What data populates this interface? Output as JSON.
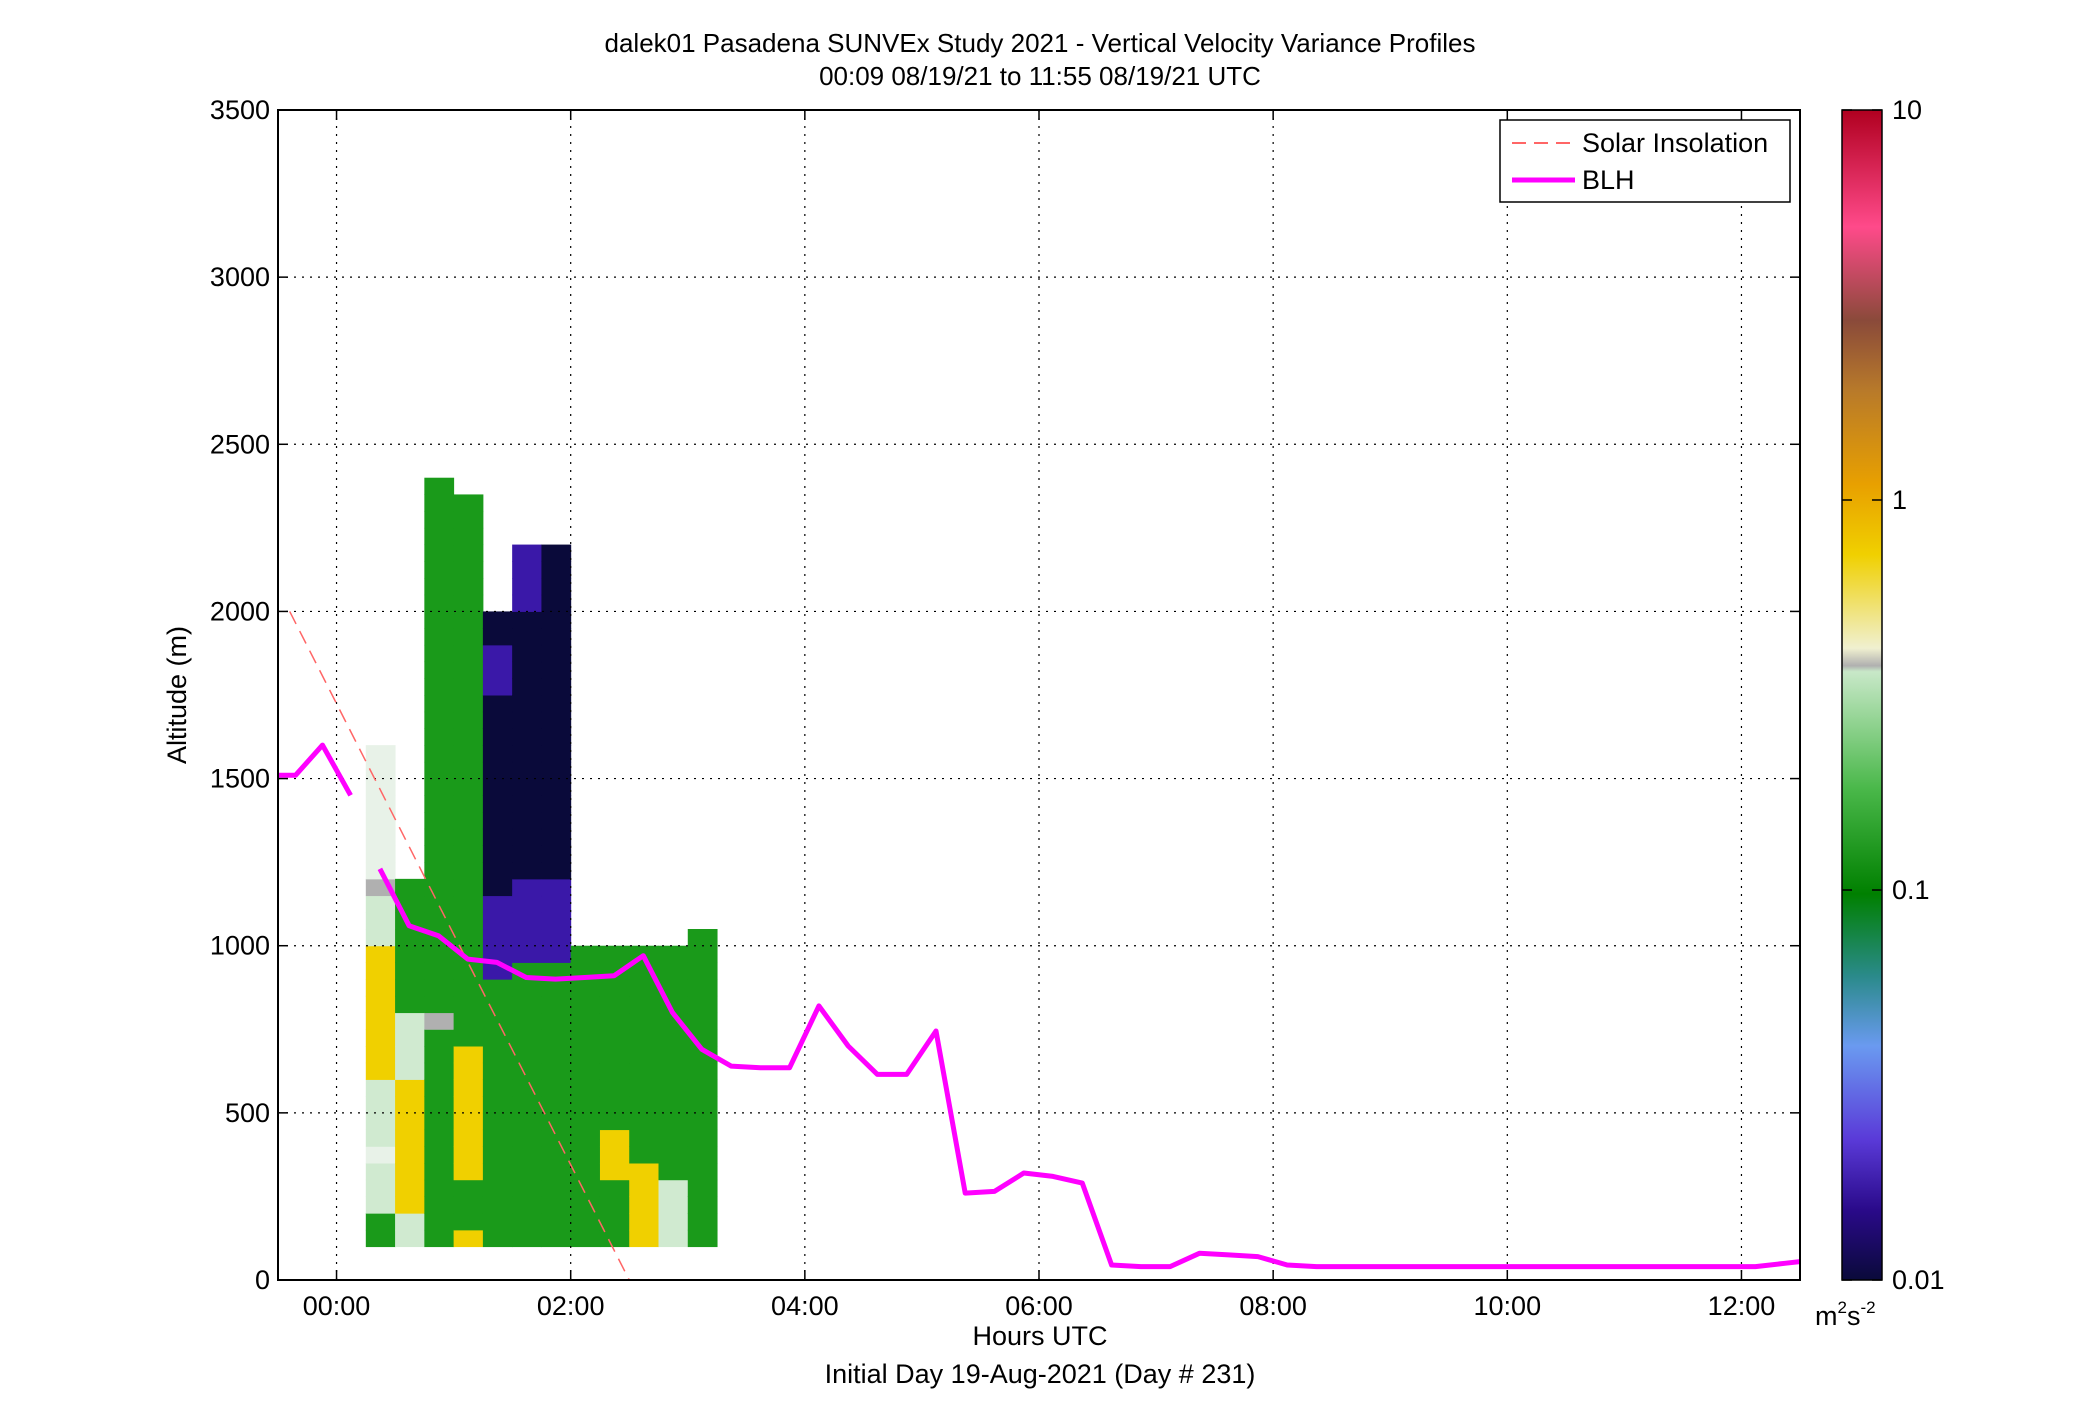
{
  "chart_data": {
    "type": "heatmap",
    "title": "dalek01 Pasadena SUNVEx Study 2021 - Vertical Velocity Variance Profiles",
    "subtitle": "00:09 08/19/21 to 11:55 08/19/21  UTC",
    "xlabel": "Hours UTC",
    "ylabel": "Altitude (m)",
    "footer": "Initial Day 19-Aug-2021 (Day # 231)",
    "xlim_hours": [
      -0.5,
      12.5
    ],
    "ylim": [
      0,
      3500
    ],
    "x_ticks": [
      {
        "hour": 0,
        "label": "00:00"
      },
      {
        "hour": 2,
        "label": "02:00"
      },
      {
        "hour": 4,
        "label": "04:00"
      },
      {
        "hour": 6,
        "label": "06:00"
      },
      {
        "hour": 8,
        "label": "08:00"
      },
      {
        "hour": 10,
        "label": "10:00"
      },
      {
        "hour": 12,
        "label": "12:00"
      }
    ],
    "y_ticks": [
      0,
      500,
      1000,
      1500,
      2000,
      2500,
      3000,
      3500
    ],
    "y_tick_labels": [
      "0",
      "500",
      "1000",
      "1500",
      "2000",
      "2500",
      "3000",
      "3500"
    ],
    "grid": true,
    "colorbar": {
      "scale": "log",
      "range": [
        0.01,
        10
      ],
      "tick_labels": [
        "0.01",
        "0.1",
        "1",
        "10"
      ],
      "unit_base": "m",
      "unit_sup1": "2",
      "unit_mid": "s",
      "unit_sup2": "-2"
    },
    "legend": {
      "position": "top-right",
      "entries": [
        {
          "label": "Solar Insolation",
          "color": "#ff6666",
          "style": "dashed"
        },
        {
          "label": "BLH",
          "color": "#ff00ff",
          "style": "solid"
        }
      ]
    },
    "solar_insolation": {
      "x_hours": [
        -0.4,
        2.5
      ],
      "y": [
        2000,
        0
      ]
    },
    "blh_segments": [
      {
        "x_hours": [
          -0.5,
          -0.35,
          -0.12,
          0.12
        ],
        "y": [
          1510,
          1510,
          1600,
          1450
        ]
      },
      {
        "x_hours": [
          0.37,
          0.62,
          0.87,
          1.12,
          1.37,
          1.62,
          1.87,
          2.12,
          2.37,
          2.62,
          2.87,
          3.12,
          3.37,
          3.62,
          3.87,
          4.12,
          4.37,
          4.62,
          4.87,
          5.12,
          5.37,
          5.62,
          5.87,
          6.12,
          6.37,
          6.62,
          6.87,
          7.12,
          7.37,
          7.62,
          7.87,
          8.12,
          8.37,
          8.62,
          8.87,
          9.12,
          9.37,
          9.62,
          9.87,
          10.12,
          10.37,
          10.62,
          10.87,
          11.12,
          11.37,
          11.62,
          11.87,
          12.12,
          12.37,
          12.5
        ],
        "y": [
          1230,
          1060,
          1030,
          960,
          950,
          905,
          900,
          905,
          910,
          970,
          800,
          690,
          640,
          635,
          635,
          820,
          700,
          615,
          615,
          745,
          260,
          265,
          320,
          310,
          290,
          45,
          40,
          40,
          80,
          75,
          70,
          45,
          40,
          40,
          40,
          40,
          40,
          40,
          40,
          40,
          40,
          40,
          40,
          40,
          40,
          40,
          40,
          40,
          50,
          55
        ]
      }
    ],
    "grid_resolution": {
      "dx_hours": 0.25,
      "dy_m": 50,
      "y_start_m": 100
    },
    "columns": [
      {
        "x_hours": 0.25,
        "cells": "ggwwwWwwwwyyyyyyyywwwcWWWWWWWW"
      },
      {
        "x_hours": 0.5,
        "cells": "wwyyyyyyyywwwwgggggggg"
      },
      {
        "x_hours": 0.75,
        "cells": "gggggggggggggcgggggggggggggggggggggggggggggggg"
      },
      {
        "x_hours": 1.0,
        "cells": "ygggyyyyyyyyggggggggggggggggggggggggggggggggg"
      },
      {
        "x_hours": 1.25,
        "cells": "ggggggggggggggggpppppnnnnnnnnnnnnpppnn"
      },
      {
        "x_hours": 1.5,
        "cells": "gggggggggggggggggpppppnnnnnnnnnnnnnnnnpppp"
      },
      {
        "x_hours": 1.75,
        "cells": "gggggggggggggggggpppppnnnnnnnnnnnnnnnnnnnn"
      },
      {
        "x_hours": 2.0,
        "cells": "gggggggggggggggggg"
      },
      {
        "x_hours": 2.25,
        "cells": "ggggyyyggggggggggg"
      },
      {
        "x_hours": 2.5,
        "cells": "yyyyyggggggggggggg"
      },
      {
        "x_hours": 2.75,
        "cells": "wwwwgggggggggggggg"
      },
      {
        "x_hours": 3.0,
        "cells": "ggggggggggggggggggg"
      }
    ]
  }
}
